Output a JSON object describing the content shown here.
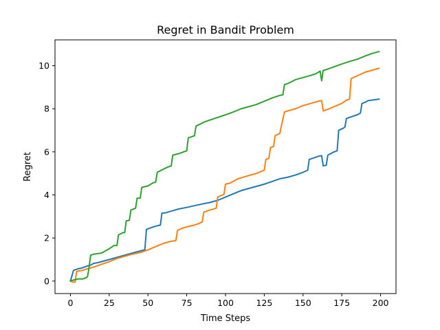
{
  "chart_data": {
    "type": "line",
    "title": "Regret in Bandit Problem",
    "xlabel": "Time Steps",
    "ylabel": "Regret",
    "xlim": [
      -9.95,
      209.95
    ],
    "ylim": [
      -0.58,
      11.2
    ],
    "xticks": [
      0,
      25,
      50,
      75,
      100,
      125,
      150,
      175,
      200
    ],
    "yticks": [
      0,
      2,
      4,
      6,
      8,
      10
    ],
    "grid": false,
    "legend": "none",
    "series": [
      {
        "color": "#1f77b4",
        "points": [
          [
            0,
            0
          ],
          [
            2,
            0.5
          ],
          [
            5,
            0.57
          ],
          [
            8,
            0.62
          ],
          [
            10,
            0.68
          ],
          [
            13,
            0.74
          ],
          [
            15,
            0.82
          ],
          [
            18,
            0.86
          ],
          [
            20,
            0.9
          ],
          [
            25,
            1.0
          ],
          [
            30,
            1.1
          ],
          [
            35,
            1.2
          ],
          [
            40,
            1.3
          ],
          [
            45,
            1.4
          ],
          [
            48,
            1.45
          ],
          [
            49,
            2.4
          ],
          [
            52,
            2.48
          ],
          [
            55,
            2.55
          ],
          [
            58,
            2.6
          ],
          [
            59,
            3.15
          ],
          [
            62,
            3.18
          ],
          [
            65,
            3.25
          ],
          [
            70,
            3.35
          ],
          [
            75,
            3.42
          ],
          [
            80,
            3.5
          ],
          [
            85,
            3.58
          ],
          [
            90,
            3.65
          ],
          [
            95,
            3.75
          ],
          [
            100,
            3.9
          ],
          [
            105,
            4.05
          ],
          [
            110,
            4.2
          ],
          [
            115,
            4.3
          ],
          [
            120,
            4.4
          ],
          [
            125,
            4.5
          ],
          [
            130,
            4.62
          ],
          [
            135,
            4.75
          ],
          [
            140,
            4.82
          ],
          [
            145,
            4.92
          ],
          [
            150,
            5.05
          ],
          [
            153,
            5.15
          ],
          [
            154,
            5.65
          ],
          [
            157,
            5.72
          ],
          [
            160,
            5.8
          ],
          [
            162,
            5.82
          ],
          [
            163,
            5.35
          ],
          [
            165,
            5.38
          ],
          [
            166,
            5.85
          ],
          [
            170,
            6.0
          ],
          [
            172,
            6.05
          ],
          [
            173,
            7.0
          ],
          [
            176,
            7.1
          ],
          [
            177,
            7.15
          ],
          [
            178,
            7.55
          ],
          [
            182,
            7.65
          ],
          [
            185,
            7.72
          ],
          [
            187,
            7.8
          ],
          [
            188,
            8.25
          ],
          [
            190,
            8.3
          ],
          [
            192,
            8.38
          ],
          [
            196,
            8.42
          ],
          [
            199,
            8.45
          ]
        ]
      },
      {
        "color": "#ff7f0e",
        "points": [
          [
            0,
            0
          ],
          [
            2,
            -0.05
          ],
          [
            3,
            -0.05
          ],
          [
            4,
            0.45
          ],
          [
            8,
            0.5
          ],
          [
            10,
            0.55
          ],
          [
            15,
            0.65
          ],
          [
            20,
            0.78
          ],
          [
            25,
            0.9
          ],
          [
            30,
            1.05
          ],
          [
            35,
            1.15
          ],
          [
            40,
            1.25
          ],
          [
            45,
            1.32
          ],
          [
            50,
            1.45
          ],
          [
            55,
            1.6
          ],
          [
            60,
            1.75
          ],
          [
            65,
            1.85
          ],
          [
            68,
            1.88
          ],
          [
            69,
            2.35
          ],
          [
            72,
            2.45
          ],
          [
            75,
            2.52
          ],
          [
            80,
            2.6
          ],
          [
            83,
            2.68
          ],
          [
            85,
            2.75
          ],
          [
            86,
            3.2
          ],
          [
            90,
            3.3
          ],
          [
            94,
            3.38
          ],
          [
            95,
            3.9
          ],
          [
            98,
            4.0
          ],
          [
            99,
            4.02
          ],
          [
            100,
            4.5
          ],
          [
            103,
            4.55
          ],
          [
            108,
            4.75
          ],
          [
            115,
            4.9
          ],
          [
            120,
            5.0
          ],
          [
            125,
            5.15
          ],
          [
            126,
            5.65
          ],
          [
            128,
            5.7
          ],
          [
            129,
            6.2
          ],
          [
            131,
            6.25
          ],
          [
            132,
            6.75
          ],
          [
            135,
            6.85
          ],
          [
            138,
            7.85
          ],
          [
            140,
            7.9
          ],
          [
            145,
            8.0
          ],
          [
            150,
            8.15
          ],
          [
            155,
            8.25
          ],
          [
            160,
            8.35
          ],
          [
            162,
            8.38
          ],
          [
            163,
            7.9
          ],
          [
            167,
            8.0
          ],
          [
            170,
            8.1
          ],
          [
            175,
            8.25
          ],
          [
            178,
            8.4
          ],
          [
            180,
            8.45
          ],
          [
            181,
            9.4
          ],
          [
            184,
            9.5
          ],
          [
            187,
            9.6
          ],
          [
            190,
            9.7
          ],
          [
            195,
            9.8
          ],
          [
            199,
            9.88
          ]
        ]
      },
      {
        "color": "#2ca02c",
        "points": [
          [
            0,
            0
          ],
          [
            2,
            0.05
          ],
          [
            5,
            0.1
          ],
          [
            8,
            0.1
          ],
          [
            10,
            0.15
          ],
          [
            11,
            0.2
          ],
          [
            12,
            0.62
          ],
          [
            13,
            1.2
          ],
          [
            15,
            1.25
          ],
          [
            20,
            1.3
          ],
          [
            25,
            1.5
          ],
          [
            28,
            1.65
          ],
          [
            30,
            1.65
          ],
          [
            31,
            2.15
          ],
          [
            34,
            2.25
          ],
          [
            35,
            2.25
          ],
          [
            36,
            2.8
          ],
          [
            38,
            2.82
          ],
          [
            39,
            3.3
          ],
          [
            42,
            3.38
          ],
          [
            43,
            3.85
          ],
          [
            45,
            3.85
          ],
          [
            46,
            4.35
          ],
          [
            50,
            4.42
          ],
          [
            53,
            4.55
          ],
          [
            55,
            4.6
          ],
          [
            56,
            5.05
          ],
          [
            60,
            5.2
          ],
          [
            63,
            5.3
          ],
          [
            65,
            5.35
          ],
          [
            66,
            5.85
          ],
          [
            70,
            5.92
          ],
          [
            73,
            6.0
          ],
          [
            75,
            6.05
          ],
          [
            76,
            6.65
          ],
          [
            80,
            6.75
          ],
          [
            81,
            7.2
          ],
          [
            84,
            7.3
          ],
          [
            86,
            7.38
          ],
          [
            90,
            7.48
          ],
          [
            95,
            7.6
          ],
          [
            100,
            7.72
          ],
          [
            105,
            7.85
          ],
          [
            110,
            8.0
          ],
          [
            115,
            8.1
          ],
          [
            120,
            8.2
          ],
          [
            125,
            8.35
          ],
          [
            130,
            8.5
          ],
          [
            135,
            8.62
          ],
          [
            137,
            8.65
          ],
          [
            138,
            9.12
          ],
          [
            141,
            9.2
          ],
          [
            145,
            9.35
          ],
          [
            150,
            9.45
          ],
          [
            155,
            9.55
          ],
          [
            158,
            9.62
          ],
          [
            160,
            9.7
          ],
          [
            161,
            9.75
          ],
          [
            162,
            9.3
          ],
          [
            163,
            9.78
          ],
          [
            165,
            9.82
          ],
          [
            170,
            9.95
          ],
          [
            175,
            10.08
          ],
          [
            180,
            10.2
          ],
          [
            185,
            10.3
          ],
          [
            190,
            10.45
          ],
          [
            195,
            10.58
          ],
          [
            199,
            10.66
          ]
        ]
      }
    ]
  }
}
